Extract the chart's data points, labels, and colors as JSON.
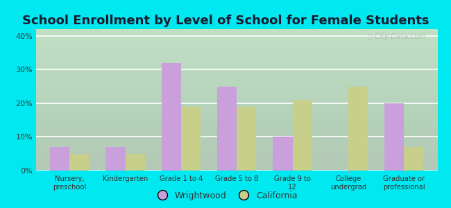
{
  "title": "School Enrollment by Level of School for Female Students",
  "categories": [
    "Nursery,\npreschool",
    "Kindergarten",
    "Grade 1 to 4",
    "Grade 5 to 8",
    "Grade 9 to\n12",
    "College\nundergrad",
    "Graduate or\nprofessional"
  ],
  "wrightwood": [
    7,
    7,
    32,
    25,
    10,
    0,
    20
  ],
  "california": [
    5,
    5,
    19,
    19,
    21,
    25,
    7
  ],
  "wrightwood_color": "#c9a0dc",
  "california_color": "#c8cf8a",
  "background_outer": "#00e8f0",
  "background_inner_top": "#eef4e8",
  "background_inner_bottom": "#ddeedd",
  "yticks": [
    0,
    10,
    20,
    30,
    40
  ],
  "ylim": [
    0,
    42
  ],
  "legend_wrightwood": "Wrightwood",
  "legend_california": "California",
  "title_fontsize": 13,
  "bar_width": 0.35
}
